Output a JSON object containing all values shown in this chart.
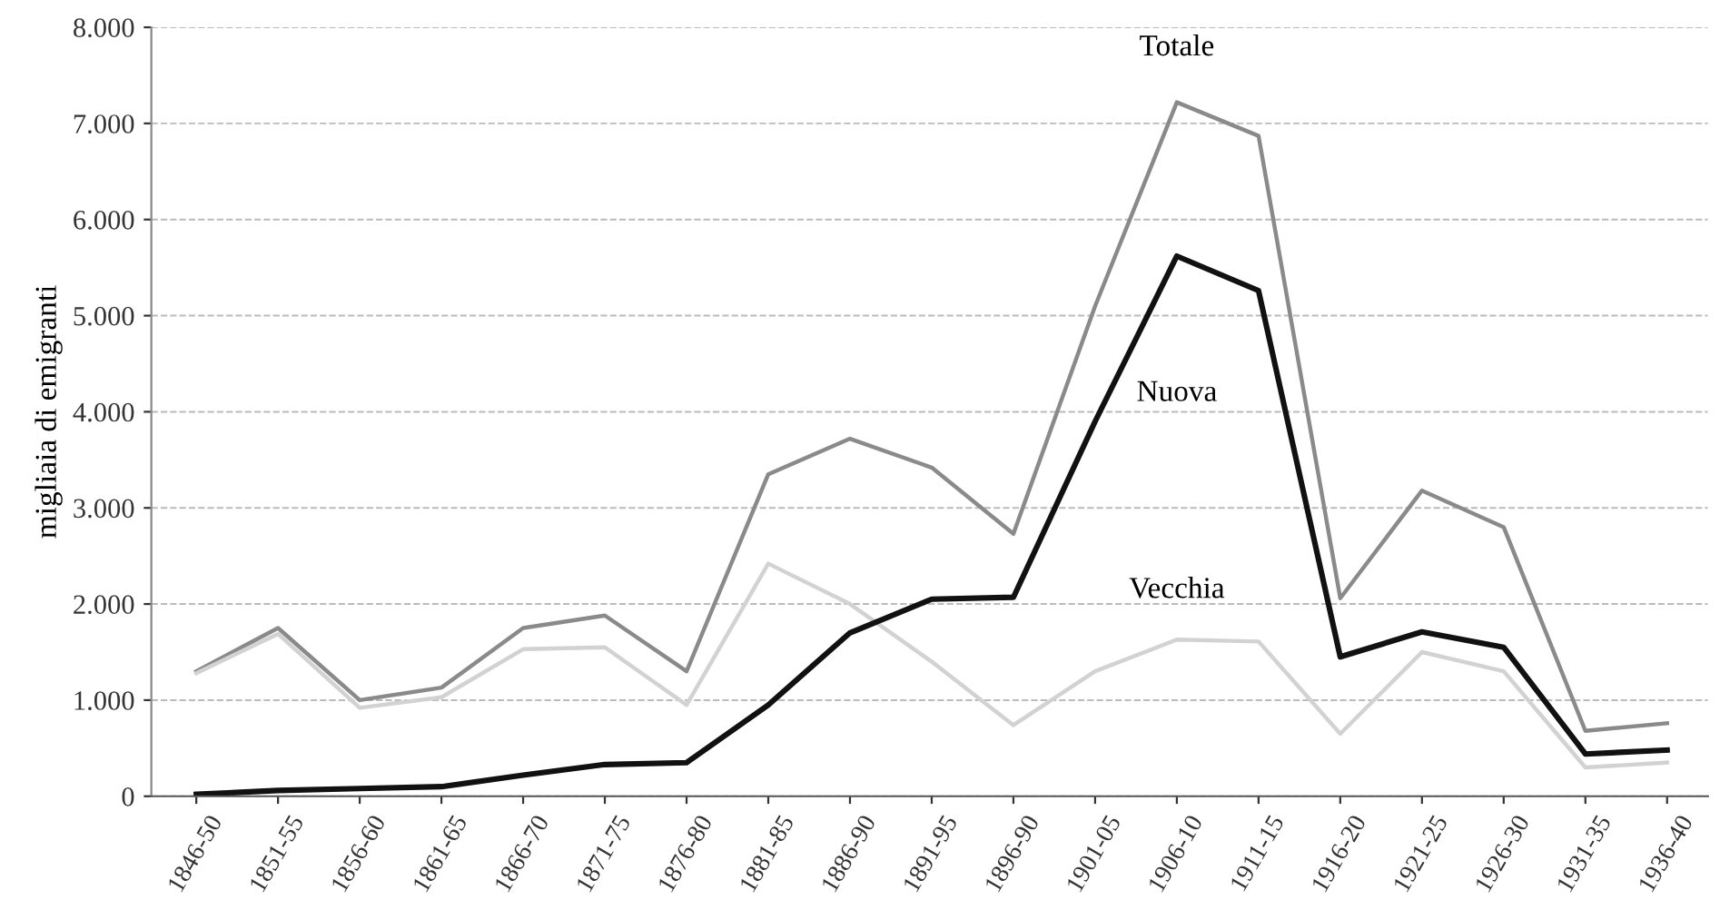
{
  "chart_data": {
    "type": "line",
    "ylabel": "migliaia di emigranti",
    "categories": [
      "1846-50",
      "1851-55",
      "1856-60",
      "1861-65",
      "1866-70",
      "1871-75",
      "1876-80",
      "1881-85",
      "1886-90",
      "1891-95",
      "1896-90",
      "1901-05",
      "1906-10",
      "1911-15",
      "1916-20",
      "1921-25",
      "1926-30",
      "1931-35",
      "1936-40"
    ],
    "series": [
      {
        "name": "Totale",
        "color": "#8a8a8a",
        "values": [
          1300,
          1750,
          1000,
          1130,
          1750,
          1880,
          1300,
          3350,
          3720,
          3420,
          2730,
          5100,
          7220,
          6870,
          2060,
          3180,
          2800,
          680,
          760
        ]
      },
      {
        "name": "Vecchia",
        "color": "#d2d2d2",
        "values": [
          1280,
          1690,
          920,
          1030,
          1530,
          1550,
          950,
          2420,
          2000,
          1400,
          740,
          1300,
          1630,
          1610,
          650,
          1500,
          1300,
          300,
          350
        ]
      },
      {
        "name": "Nuova",
        "color": "#111111",
        "values": [
          20,
          60,
          80,
          100,
          220,
          330,
          350,
          950,
          1700,
          2050,
          2070,
          3900,
          5620,
          5260,
          1450,
          1710,
          1550,
          440,
          480
        ]
      }
    ],
    "ylim": [
      0,
      8000
    ],
    "yticks": [
      {
        "value": 0,
        "label": "0"
      },
      {
        "value": 1000,
        "label": "1.000"
      },
      {
        "value": 2000,
        "label": "2.000"
      },
      {
        "value": 3000,
        "label": "3.000"
      },
      {
        "value": 4000,
        "label": "4.000"
      },
      {
        "value": 5000,
        "label": "5.000"
      },
      {
        "value": 6000,
        "label": "6.000"
      },
      {
        "value": 7000,
        "label": "7.000"
      },
      {
        "value": 8000,
        "label": "8.000"
      }
    ],
    "grid": "y",
    "line_style": "solid",
    "marker": "none"
  }
}
